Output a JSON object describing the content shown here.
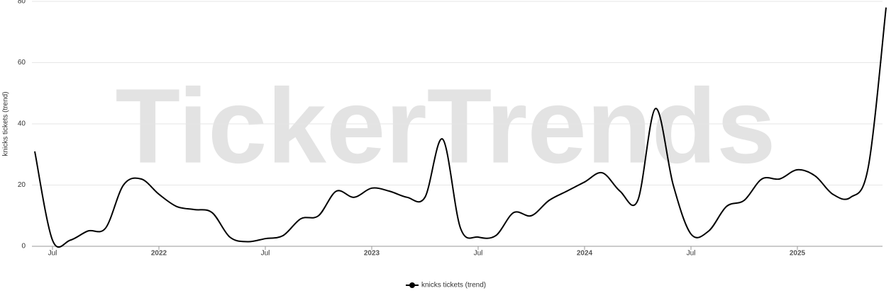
{
  "chart_data": {
    "type": "line",
    "watermark": "TickerTrends",
    "y_label": "knicks tickets  (trend)",
    "x": [
      "2021-06",
      "2021-07",
      "2021-08",
      "2021-09",
      "2021-10",
      "2021-11",
      "2021-12",
      "2022-01",
      "2022-02",
      "2022-03",
      "2022-04",
      "2022-05",
      "2022-06",
      "2022-07",
      "2022-08",
      "2022-09",
      "2022-10",
      "2022-11",
      "2022-12",
      "2023-01",
      "2023-02",
      "2023-03",
      "2023-04",
      "2023-05",
      "2023-06",
      "2023-07",
      "2023-08",
      "2023-09",
      "2023-10",
      "2023-11",
      "2023-12",
      "2024-01",
      "2024-02",
      "2024-03",
      "2024-04",
      "2024-05",
      "2024-06",
      "2024-07",
      "2024-08",
      "2024-09",
      "2024-10",
      "2024-11",
      "2024-12",
      "2025-01",
      "2025-02",
      "2025-03",
      "2025-04",
      "2025-05",
      "2025-06"
    ],
    "series": [
      {
        "name": "knicks tickets  (trend)",
        "color": "#000000",
        "values": [
          31,
          2,
          2,
          5,
          6,
          20,
          22,
          17,
          13,
          12,
          11,
          3,
          1.5,
          2.5,
          3.5,
          9,
          10,
          18,
          16,
          19,
          18,
          16,
          16,
          35,
          6,
          3,
          3.5,
          11,
          10,
          15,
          18,
          21,
          24,
          18,
          15,
          45,
          20,
          4,
          5,
          13,
          15,
          22,
          22,
          25,
          23,
          17,
          16,
          26,
          78
        ]
      }
    ],
    "xlim": [
      "2021-06",
      "2025-06"
    ],
    "xticks": [
      {
        "value": "2021-07",
        "label": "Jul"
      },
      {
        "value": "2022-01",
        "label": "2022"
      },
      {
        "value": "2022-07",
        "label": "Jul"
      },
      {
        "value": "2023-01",
        "label": "2023"
      },
      {
        "value": "2023-07",
        "label": "Jul"
      },
      {
        "value": "2024-01",
        "label": "2024"
      },
      {
        "value": "2024-07",
        "label": "Jul"
      },
      {
        "value": "2025-01",
        "label": "2025"
      }
    ],
    "ylim": [
      0,
      80
    ],
    "yticks": [
      0,
      20,
      40,
      60,
      80
    ],
    "grid": true,
    "legend": "bottom"
  }
}
